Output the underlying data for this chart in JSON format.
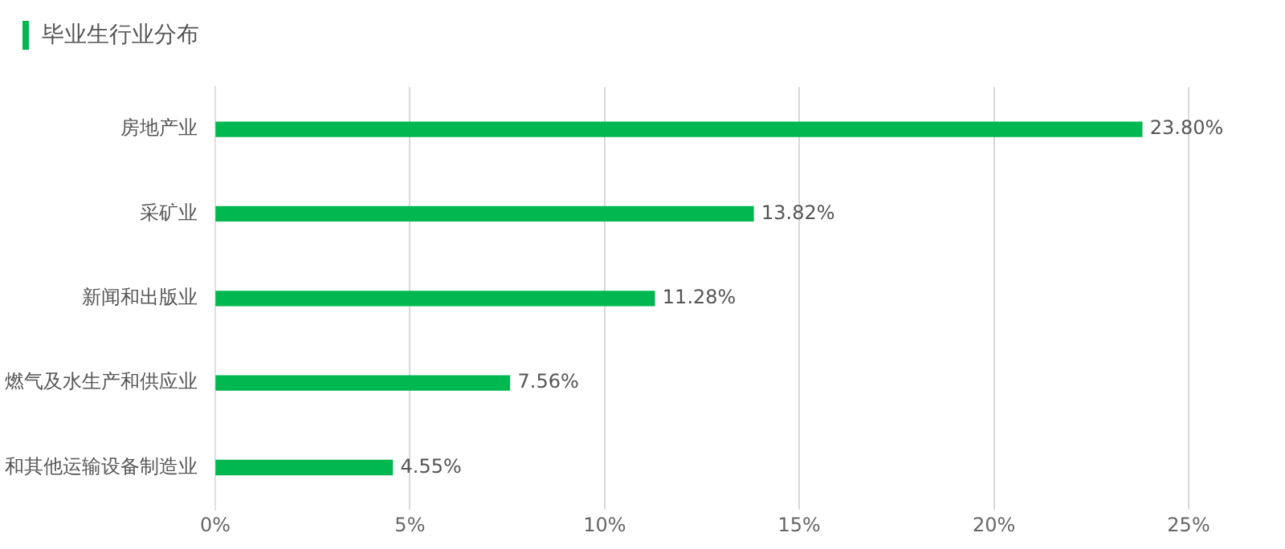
{
  "chart_data": {
    "type": "bar",
    "orientation": "horizontal",
    "title": "毕业生行业分布",
    "categories": [
      "房地产业",
      "采矿业",
      "新闻和出版业",
      "燃气及水生产和供应业",
      "和其他运输设备制造业"
    ],
    "values": [
      23.8,
      13.82,
      11.28,
      7.56,
      4.55
    ],
    "value_labels": [
      "23.80%",
      "13.82%",
      "11.28%",
      "7.56%",
      "4.55%"
    ],
    "color": "#00b84f",
    "xlim": [
      0,
      25
    ],
    "xticks": [
      {
        "value": 0,
        "label": "0%"
      },
      {
        "value": 5,
        "label": "5%"
      },
      {
        "value": 10,
        "label": "10%"
      },
      {
        "value": 15,
        "label": "15%"
      },
      {
        "value": 20,
        "label": "20%"
      },
      {
        "value": 25,
        "label": "25%"
      }
    ],
    "grid": "x",
    "legend": false
  }
}
